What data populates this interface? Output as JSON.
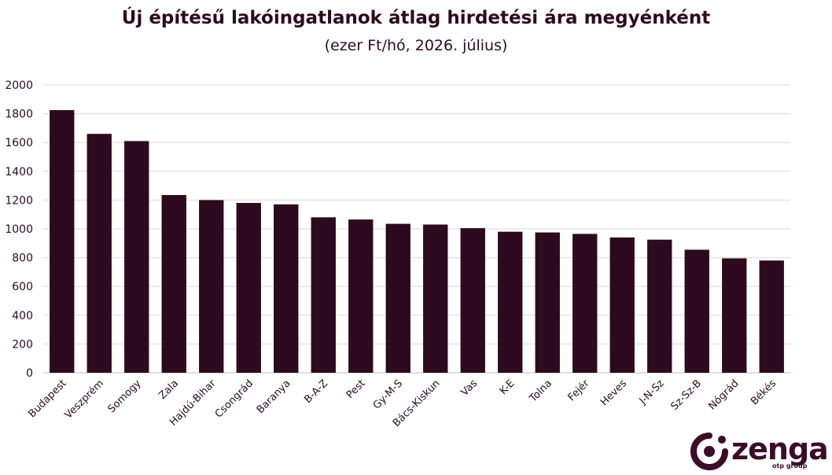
{
  "chart_data": {
    "type": "bar",
    "title": "Új építésű lakóingatlanok átlag hirdetési ára megyénként",
    "subtitle": "(ezer Ft/hó, 2026. július)",
    "xlabel": "",
    "ylabel": "",
    "ylim": [
      0,
      2000
    ],
    "yticks": [
      "0",
      "200",
      "400",
      "600",
      "800",
      "1000",
      "1200",
      "1400",
      "1600",
      "1800",
      "2000"
    ],
    "grid": true,
    "legend": "none",
    "bar_color": "#2d0a1f",
    "categories": [
      "Budapest",
      "Veszprém",
      "Somogy",
      "Zala",
      "Hajdú-Bihar",
      "Csongrád",
      "Baranya",
      "B-A-Z",
      "Pest",
      "Gy-M-S",
      "Bács-Kiskun",
      "Vas",
      "K-E",
      "Tolna",
      "Fejér",
      "Heves",
      "J-N-Sz",
      "Sz-Sz-B",
      "Nógrád",
      "Békés"
    ],
    "values": [
      1825,
      1660,
      1610,
      1235,
      1200,
      1180,
      1170,
      1080,
      1065,
      1035,
      1030,
      1005,
      980,
      975,
      965,
      940,
      925,
      855,
      795,
      780
    ]
  },
  "logo": {
    "wordmark": "zenga",
    "subtext": "otp group",
    "brand_color": "#3b0d2b",
    "icon": "zenga-swirl-icon"
  }
}
